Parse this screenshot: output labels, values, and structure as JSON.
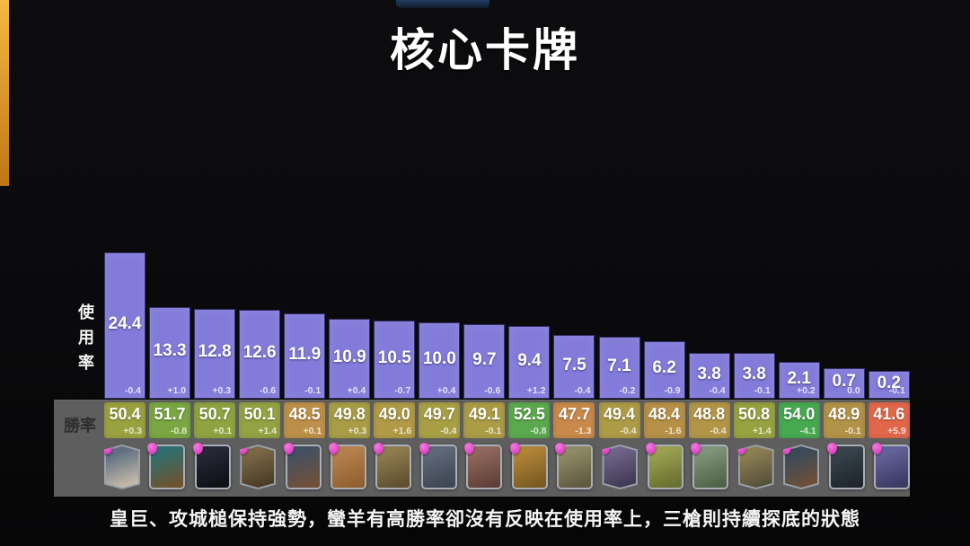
{
  "page": {
    "title": "核心卡牌",
    "caption": "皇巨、攻城槌保持強勢，蠻羊有高勝率卻沒有反映在使用率上，三槍則持續探底的狀態"
  },
  "labels": {
    "usage_axis": "使用率",
    "win_axis": "勝率"
  },
  "colors": {
    "background": "#0c0c0e",
    "bar_fill": "#837bd9",
    "bar_border": "#333067",
    "band_gray": "#5e5e5e",
    "accent_stripe_top": "#f6b844",
    "accent_stripe_bottom": "#bd7715",
    "top_sliver": "#24456e",
    "elixir_badge": "#d93cc0"
  },
  "chart_data": {
    "type": "bar",
    "title": "核心卡牌",
    "ylabel": "使用率",
    "row_label": "勝率",
    "grid": false,
    "legend_position": "none",
    "ylim": [
      0,
      25
    ],
    "categories": [
      "card-01",
      "card-02",
      "card-03",
      "card-04",
      "card-05",
      "card-06",
      "card-07",
      "card-08",
      "card-09",
      "card-10",
      "card-11",
      "card-12",
      "card-13",
      "card-14",
      "card-15",
      "card-16",
      "card-17",
      "card-18"
    ],
    "usage": {
      "values": [
        24.4,
        13.3,
        12.8,
        12.6,
        11.9,
        10.9,
        10.5,
        10.0,
        9.7,
        9.4,
        7.5,
        7.1,
        6.2,
        3.8,
        3.8,
        2.1,
        0.7,
        0.2
      ],
      "change": [
        "-0.4",
        "+1.0",
        "+0.3",
        "-0.6",
        "-0.1",
        "+0.4",
        "-0.7",
        "+0.4",
        "-0.6",
        "+1.2",
        "-0.4",
        "-0.2",
        "-0.9",
        "-0.4",
        "-0.1",
        "+0.2",
        "0.0",
        "-0.1"
      ]
    },
    "win_rate": {
      "values": [
        "50.4",
        "51.7",
        "50.7",
        "50.1",
        "48.5",
        "49.8",
        "49.0",
        "49.7",
        "49.1",
        "52.5",
        "47.7",
        "49.4",
        "48.4",
        "48.8",
        "50.8",
        "54.0",
        "48.9",
        "41.6"
      ],
      "change": [
        "+0.3",
        "-0.8",
        "+0.1",
        "+1.4",
        "+0.1",
        "+0.3",
        "+1.6",
        "-0.4",
        "-0.1",
        "-0.8",
        "-1.3",
        "-0.4",
        "-1.6",
        "-0.4",
        "+1.4",
        "-4.1",
        "-0.1",
        "+5.9"
      ],
      "tile_colors": [
        "#9aa23f",
        "#7aa742",
        "#8fa341",
        "#93a342",
        "#bd9049",
        "#a89d46",
        "#b09a47",
        "#a89f45",
        "#ab9c46",
        "#5ba94e",
        "#c9894a",
        "#ad9b46",
        "#b79147",
        "#b29647",
        "#97a341",
        "#47a950",
        "#b39347",
        "#e2674a"
      ]
    }
  },
  "cards": [
    {
      "frame": "champion",
      "art": [
        "#5f6f82",
        "#c9bca9"
      ]
    },
    {
      "frame": "normal",
      "art": [
        "#2f6e6e",
        "#6e532f"
      ]
    },
    {
      "frame": "normal",
      "art": [
        "#262734",
        "#101018"
      ]
    },
    {
      "frame": "champion",
      "art": [
        "#7a6847",
        "#4a3b25"
      ]
    },
    {
      "frame": "normal",
      "art": [
        "#445062",
        "#70503a"
      ]
    },
    {
      "frame": "normal",
      "art": [
        "#b5804e",
        "#93602f"
      ]
    },
    {
      "frame": "normal",
      "art": [
        "#8f7c4f",
        "#5f4f2f"
      ]
    },
    {
      "frame": "normal",
      "art": [
        "#5f6878",
        "#3f4654"
      ]
    },
    {
      "frame": "normal",
      "art": [
        "#8f675c",
        "#5f4038"
      ]
    },
    {
      "frame": "normal",
      "art": [
        "#b08437",
        "#7a5a22"
      ]
    },
    {
      "frame": "normal",
      "art": [
        "#8f8a65",
        "#5f5a40"
      ]
    },
    {
      "frame": "champion",
      "art": [
        "#6f6488",
        "#3f3852"
      ]
    },
    {
      "frame": "normal",
      "art": [
        "#9aa050",
        "#6a7030"
      ]
    },
    {
      "frame": "normal",
      "art": [
        "#7f9379",
        "#4f6349"
      ]
    },
    {
      "frame": "champion",
      "art": [
        "#8d7f54",
        "#55503a"
      ]
    },
    {
      "frame": "champion",
      "art": [
        "#3a4a5a",
        "#6f4f38"
      ]
    },
    {
      "frame": "normal",
      "art": [
        "#37424a",
        "#1f262c"
      ]
    },
    {
      "frame": "normal",
      "art": [
        "#62629a",
        "#3a3a62"
      ]
    }
  ]
}
